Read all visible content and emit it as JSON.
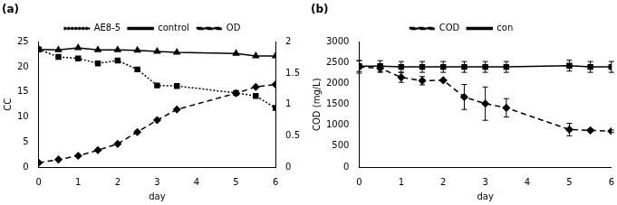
{
  "chart_data": [
    {
      "type": "line",
      "title": "(a)",
      "x_label": "day",
      "y_label": "CC",
      "xlim": [
        0,
        6
      ],
      "xticks": [
        0,
        1,
        2,
        3,
        4,
        5,
        6
      ],
      "ylim": [
        0,
        25
      ],
      "yticks": [
        0,
        5,
        10,
        15,
        20,
        25
      ],
      "y2lim": [
        0,
        2
      ],
      "y2ticks": [
        0,
        0.5,
        1,
        1.5,
        2
      ],
      "grid": false,
      "legend": "top",
      "x": [
        0,
        0.5,
        1,
        1.5,
        2,
        2.5,
        3,
        3.5,
        5,
        5.5,
        6
      ],
      "series": [
        {
          "name": "AE8-5",
          "color": "#000000",
          "marker": "square",
          "line_style": "dotted",
          "values": [
            23.5,
            22,
            21.7,
            20.7,
            21.3,
            19.5,
            16.3,
            16.2,
            14.8,
            14.2,
            11.8
          ]
        },
        {
          "name": "control",
          "color": "#000000",
          "marker": "triangle",
          "line_style": "solid",
          "values": [
            23.5,
            23.4,
            23.8,
            23.4,
            23.4,
            23.3,
            23.1,
            22.9,
            22.7,
            22.2,
            22.2
          ]
        },
        {
          "name": "OD",
          "color": "#000000",
          "marker": "diamond",
          "line_style": "dashed",
          "axis": "y2",
          "values": [
            0.07,
            0.12,
            0.18,
            0.27,
            0.37,
            0.56,
            0.75,
            0.92,
            1.18,
            1.28,
            1.32
          ]
        }
      ]
    },
    {
      "type": "line",
      "title": "(b)",
      "x_label": "day",
      "y_label": "COD (mg/L)",
      "xlim": [
        0,
        6
      ],
      "xticks": [
        0,
        1,
        2,
        3,
        4,
        5,
        6
      ],
      "ylim": [
        0,
        3000
      ],
      "yticks": [
        0,
        500,
        1000,
        1500,
        2000,
        2500,
        3000
      ],
      "grid": false,
      "legend": "top",
      "x": [
        0,
        0.5,
        1,
        1.5,
        2,
        2.5,
        3,
        3.5,
        5,
        5.5,
        6
      ],
      "series": [
        {
          "name": "COD",
          "color": "#000000",
          "marker": "diamond",
          "line_style": "dashed",
          "values": [
            2400,
            2370,
            2150,
            2070,
            2080,
            1680,
            1520,
            1420,
            900,
            880,
            860
          ],
          "errors": [
            150,
            100,
            120,
            100,
            30,
            300,
            400,
            220,
            150,
            30,
            30
          ]
        },
        {
          "name": "con",
          "color": "#000000",
          "marker": "square",
          "line_style": "solid",
          "values": [
            2420,
            2420,
            2400,
            2400,
            2400,
            2400,
            2400,
            2400,
            2430,
            2400,
            2400
          ],
          "errors": [
            130,
            130,
            130,
            130,
            130,
            130,
            130,
            130,
            130,
            130,
            130
          ]
        }
      ]
    }
  ]
}
